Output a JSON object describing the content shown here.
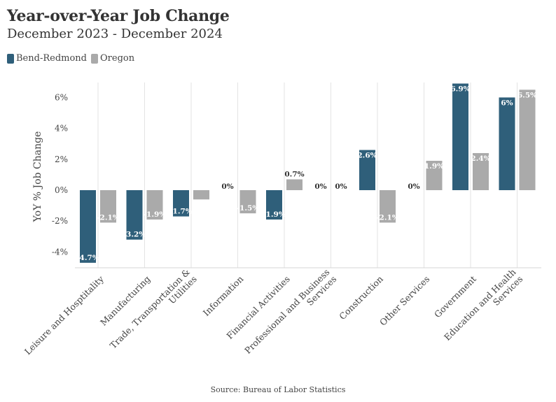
{
  "chart_data": {
    "type": "bar",
    "title": "Year-over-Year Job Change",
    "subtitle": "December 2023 - December 2024",
    "ylabel": "YoY % Job Change",
    "xlabel": "",
    "ylim": [
      -5,
      7
    ],
    "yticks": [
      -4,
      -2,
      0,
      2,
      4,
      6
    ],
    "ytick_labels": [
      "-4%",
      "-2%",
      "0%",
      "2%",
      "4%",
      "6%"
    ],
    "categories": [
      "Leisure and Hosptitality",
      "Manufacturing",
      "Trade, Transportation & Utilities",
      "Information",
      "Financial Activities",
      "Professional and Business Services",
      "Construction",
      "Other Services",
      "Government",
      "Education and Health Services"
    ],
    "category_lines": [
      [
        "Leisure and Hosptitality"
      ],
      [
        "Manufacturing"
      ],
      [
        "Trade, Transportation &",
        "Utilities"
      ],
      [
        "Information"
      ],
      [
        "Financial Activities"
      ],
      [
        "Professional and Business",
        "Services"
      ],
      [
        "Construction"
      ],
      [
        "Other Services"
      ],
      [
        "Government"
      ],
      [
        "Education and Health",
        "Services"
      ]
    ],
    "series": [
      {
        "name": "Bend-Redmond",
        "color": "#2f5f7a",
        "values": [
          -4.7,
          -3.2,
          -1.7,
          0,
          -1.9,
          0,
          2.6,
          0,
          6.9,
          6
        ],
        "labels": [
          "-4.7%",
          "-3.2%",
          "-1.7%",
          "0%",
          "-1.9%",
          "0%",
          "2.6%",
          "0%",
          "6.9%",
          "6%"
        ]
      },
      {
        "name": "Oregon",
        "color": "#aaaaaa",
        "values": [
          -2.1,
          -1.9,
          -0.6,
          -1.5,
          0.7,
          0,
          -2.1,
          1.9,
          2.4,
          6.5
        ],
        "labels": [
          "-2.1%",
          "-1.9%",
          "",
          "-1.5%",
          "0.7%",
          "0%",
          "-2.1%",
          "1.9%",
          "2.4%",
          "6.5%"
        ]
      }
    ],
    "source": "Source: Bureau of Labor Statistics"
  }
}
